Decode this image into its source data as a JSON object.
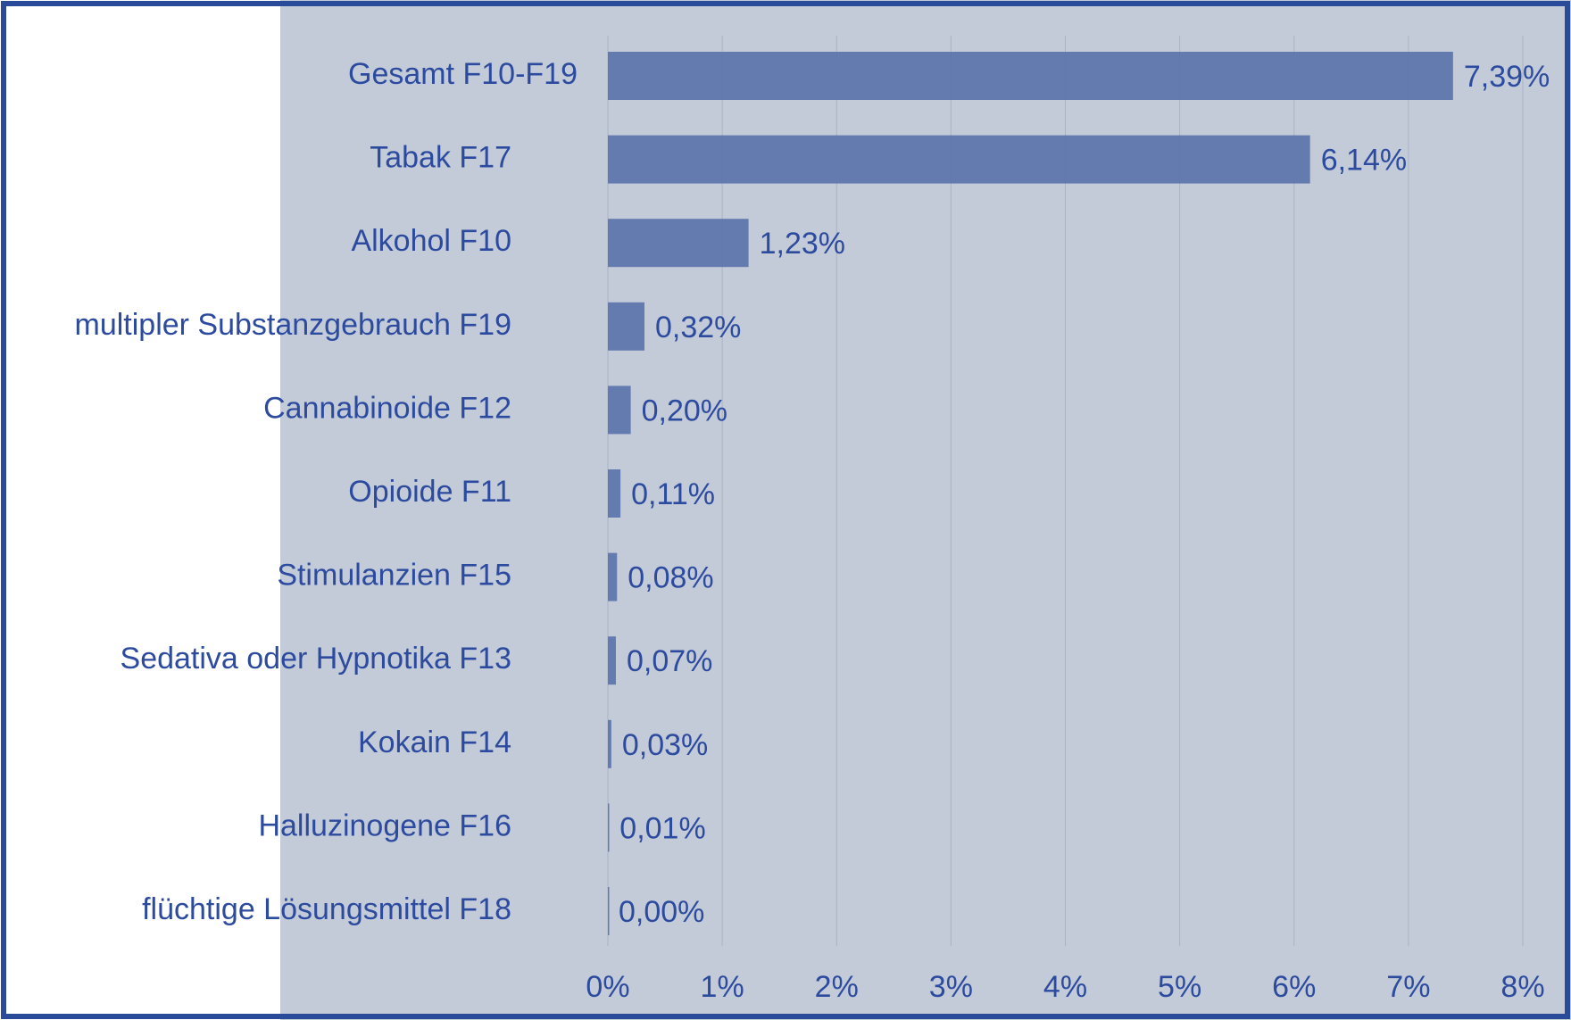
{
  "chart_data": {
    "type": "bar",
    "orientation": "horizontal",
    "categories": [
      "Gesamt F10-F19",
      "Tabak F17",
      "Alkohol F10",
      "multipler Substanzgebrauch F19",
      "Cannabinoide F12",
      "Opioide F11",
      "Stimulanzien F15",
      "Sedativa oder Hypnotika F13",
      "Kokain F14",
      "Halluzinogene F16",
      "flüchtige Lösungsmittel F18"
    ],
    "values": [
      7.39,
      6.14,
      1.23,
      0.32,
      0.2,
      0.11,
      0.08,
      0.07,
      0.03,
      0.01,
      0.0
    ],
    "value_labels": [
      "7,39%",
      "6,14%",
      "1,23%",
      "0,32%",
      "0,20%",
      "0,11%",
      "0,08%",
      "0,07%",
      "0,03%",
      "0,01%",
      "0,00%"
    ],
    "color": "#5a72ab",
    "xlim": [
      0,
      8
    ],
    "xticks": [
      {
        "value": 0,
        "label": "0%"
      },
      {
        "value": 1,
        "label": "1%"
      },
      {
        "value": 2,
        "label": "2%"
      },
      {
        "value": 3,
        "label": "3%"
      },
      {
        "value": 4,
        "label": "4%"
      },
      {
        "value": 5,
        "label": "5%"
      },
      {
        "value": 6,
        "label": "6%"
      },
      {
        "value": 7,
        "label": "7%"
      },
      {
        "value": 8,
        "label": "8%"
      }
    ],
    "grid": true
  }
}
